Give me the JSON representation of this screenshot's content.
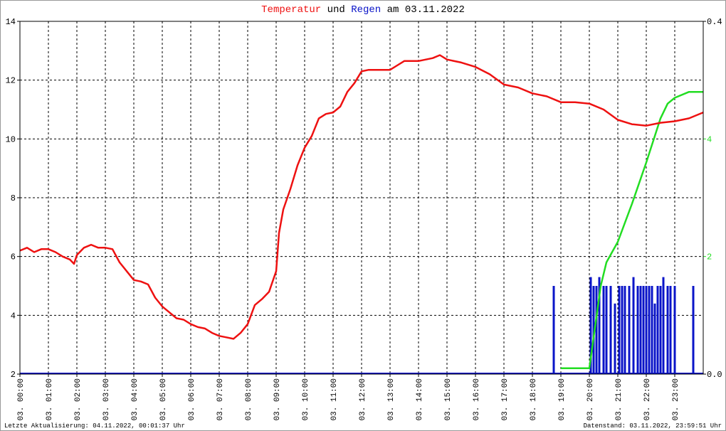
{
  "chart_data": {
    "type": "line",
    "title_joiner": "und",
    "title_date": "am 03.11.2022",
    "xlim": [
      0,
      24
    ],
    "xticks": [
      {
        "value": 0,
        "label": "03. 00:00"
      },
      {
        "value": 1,
        "label": "03. 01:00"
      },
      {
        "value": 2,
        "label": "03. 02:00"
      },
      {
        "value": 3,
        "label": "03. 03:00"
      },
      {
        "value": 4,
        "label": "03. 04:00"
      },
      {
        "value": 5,
        "label": "03. 05:00"
      },
      {
        "value": 6,
        "label": "03. 06:00"
      },
      {
        "value": 7,
        "label": "03. 07:00"
      },
      {
        "value": 8,
        "label": "03. 08:00"
      },
      {
        "value": 9,
        "label": "03. 09:00"
      },
      {
        "value": 10,
        "label": "03. 10:00"
      },
      {
        "value": 11,
        "label": "03. 11:00"
      },
      {
        "value": 12,
        "label": "03. 12:00"
      },
      {
        "value": 13,
        "label": "03. 13:00"
      },
      {
        "value": 14,
        "label": "03. 14:00"
      },
      {
        "value": 15,
        "label": "03. 15:00"
      },
      {
        "value": 16,
        "label": "03. 16:00"
      },
      {
        "value": 17,
        "label": "03. 17:00"
      },
      {
        "value": 18,
        "label": "03. 18:00"
      },
      {
        "value": 19,
        "label": "03. 19:00"
      },
      {
        "value": 20,
        "label": "03. 20:00"
      },
      {
        "value": 21,
        "label": "03. 21:00"
      },
      {
        "value": 22,
        "label": "03. 22:00"
      },
      {
        "value": 23,
        "label": "03. 23:00"
      }
    ],
    "ylim": [
      2,
      14
    ],
    "yticks": [
      2,
      4,
      6,
      8,
      10,
      12,
      14
    ],
    "y2lim": [
      0,
      0.4
    ],
    "y2ticks": [
      {
        "value": 0,
        "label": "0.0"
      },
      0.4
    ],
    "y3lim": [
      0,
      6
    ],
    "y3ticks": [
      2,
      4
    ],
    "y3color": "#22dd22",
    "grid": true,
    "series": [
      {
        "name": "Temperatur",
        "color": "#ee1111",
        "x": [
          0,
          0.25,
          0.5,
          0.75,
          1,
          1.25,
          1.5,
          1.75,
          1.9,
          2,
          2.25,
          2.5,
          2.75,
          3,
          3.25,
          3.5,
          3.75,
          4,
          4.25,
          4.5,
          4.75,
          5,
          5.25,
          5.5,
          5.75,
          6,
          6.25,
          6.5,
          6.75,
          7,
          7.25,
          7.5,
          7.75,
          8,
          8.25,
          8.5,
          8.75,
          9,
          9.1,
          9.25,
          9.5,
          9.75,
          10,
          10.25,
          10.5,
          10.75,
          11,
          11.25,
          11.5,
          11.75,
          12,
          12.25,
          12.5,
          12.75,
          13,
          13.25,
          13.5,
          14,
          14.5,
          14.75,
          15,
          15.5,
          16,
          16.5,
          17,
          17.5,
          18,
          18.5,
          19,
          19.5,
          20,
          20.5,
          21,
          21.5,
          22,
          22.5,
          23,
          23.5,
          24
        ],
        "values": [
          6.2,
          6.3,
          6.15,
          6.25,
          6.25,
          6.15,
          6.0,
          5.9,
          5.75,
          6.05,
          6.3,
          6.4,
          6.3,
          6.3,
          6.25,
          5.8,
          5.5,
          5.2,
          5.15,
          5.05,
          4.6,
          4.3,
          4.1,
          3.9,
          3.85,
          3.7,
          3.6,
          3.55,
          3.4,
          3.3,
          3.25,
          3.2,
          3.4,
          3.7,
          4.35,
          4.55,
          4.8,
          5.5,
          6.8,
          7.6,
          8.3,
          9.1,
          9.7,
          10.1,
          10.7,
          10.85,
          10.9,
          11.1,
          11.6,
          11.9,
          12.3,
          12.35,
          12.35,
          12.35,
          12.35,
          12.5,
          12.65,
          12.65,
          12.75,
          12.85,
          12.7,
          12.6,
          12.45,
          12.2,
          11.85,
          11.75,
          11.55,
          11.45,
          11.25,
          11.25,
          11.2,
          11.0,
          10.65,
          10.5,
          10.45,
          10.55,
          10.6,
          10.7,
          10.9
        ]
      },
      {
        "name": "Regen",
        "color": "#0a14c8",
        "axis": "y2",
        "x": [
          18.75,
          20.05,
          20.15,
          20.25,
          20.35,
          20.5,
          20.6,
          20.75,
          20.9,
          21.05,
          21.15,
          21.25,
          21.4,
          21.55,
          21.7,
          21.8,
          21.9,
          22.0,
          22.1,
          22.2,
          22.3,
          22.4,
          22.5,
          22.6,
          22.75,
          22.85,
          23.0,
          23.65
        ],
        "values": [
          0.1,
          0.11,
          0.1,
          0.1,
          0.11,
          0.1,
          0.1,
          0.1,
          0.08,
          0.1,
          0.1,
          0.1,
          0.1,
          0.11,
          0.1,
          0.1,
          0.1,
          0.1,
          0.1,
          0.1,
          0.08,
          0.1,
          0.1,
          0.11,
          0.1,
          0.1,
          0.1,
          0.1
        ]
      },
      {
        "color": "#22dd22",
        "axis": "y3",
        "x": [
          19,
          20,
          20.4,
          20.6,
          21,
          21.5,
          22,
          22.5,
          22.75,
          23,
          23.5,
          24
        ],
        "values": [
          0.1,
          0.1,
          1.5,
          1.9,
          2.25,
          2.9,
          3.6,
          4.35,
          4.6,
          4.7,
          4.8,
          4.8
        ]
      }
    ],
    "annotations": [
      "Letzte Aktualisierung: 04.11.2022, 00:01:37 Uhr",
      "Datenstand: 03.11.2022, 23:59:51 Uhr"
    ]
  }
}
